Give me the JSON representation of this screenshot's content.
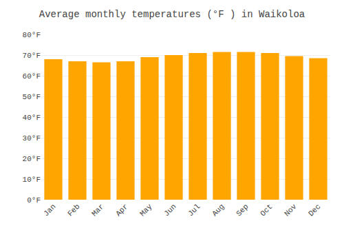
{
  "chart_data": {
    "type": "bar",
    "title": "Average monthly temperatures (°F ) in Waikoloa",
    "categories": [
      "Jan",
      "Feb",
      "Mar",
      "Apr",
      "May",
      "Jun",
      "Jul",
      "Aug",
      "Sep",
      "Oct",
      "Nov",
      "Dec"
    ],
    "values": [
      68,
      67,
      66.5,
      67,
      69,
      70,
      71,
      71.5,
      71.5,
      71,
      69.5,
      68.5
    ],
    "color": "#FFA500",
    "ylim": [
      0,
      80
    ],
    "yticks": [
      {
        "value": 0,
        "label": "0°F"
      },
      {
        "value": 10,
        "label": "10°F"
      },
      {
        "value": 20,
        "label": "20°F"
      },
      {
        "value": 30,
        "label": "30°F"
      },
      {
        "value": 40,
        "label": "40°F"
      },
      {
        "value": 50,
        "label": "50°F"
      },
      {
        "value": 60,
        "label": "60°F"
      },
      {
        "value": 70,
        "label": "70°F"
      },
      {
        "value": 80,
        "label": "80°F"
      }
    ],
    "grid": true
  }
}
